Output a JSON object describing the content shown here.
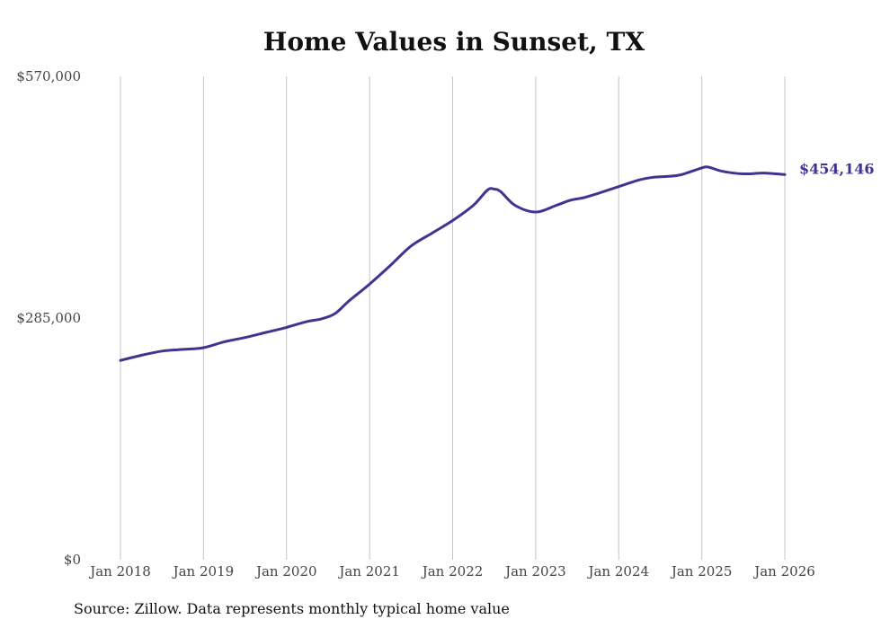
{
  "chart_data": {
    "type": "line",
    "title": "Home Values in Sunset, TX",
    "source": "Source: Zillow. Data represents monthly typical home value",
    "xlabel": "",
    "ylabel": "",
    "ylim": [
      0,
      570000
    ],
    "y_ticks": [
      {
        "value": 0,
        "label": "$0"
      },
      {
        "value": 285000,
        "label": "$285,000"
      },
      {
        "value": 570000,
        "label": "$570,000"
      }
    ],
    "x_ticks": [
      {
        "t": 2018,
        "label": "Jan 2018"
      },
      {
        "t": 2019,
        "label": "Jan 2019"
      },
      {
        "t": 2020,
        "label": "Jan 2020"
      },
      {
        "t": 2021,
        "label": "Jan 2021"
      },
      {
        "t": 2022,
        "label": "Jan 2022"
      },
      {
        "t": 2023,
        "label": "Jan 2023"
      },
      {
        "t": 2024,
        "label": "Jan 2024"
      },
      {
        "t": 2025,
        "label": "Jan 2025"
      },
      {
        "t": 2026,
        "label": "Jan 2026"
      }
    ],
    "xlim": [
      2018,
      2026
    ],
    "grid": "vertical",
    "line_color": "#3d3591",
    "end_label": "$454,146",
    "series": [
      {
        "name": "Typical home value",
        "points": [
          [
            2018.0,
            235000
          ],
          [
            2018.25,
            241000
          ],
          [
            2018.5,
            246000
          ],
          [
            2018.75,
            248000
          ],
          [
            2019.0,
            250000
          ],
          [
            2019.25,
            257000
          ],
          [
            2019.5,
            262000
          ],
          [
            2019.75,
            268000
          ],
          [
            2020.0,
            274000
          ],
          [
            2020.25,
            281000
          ],
          [
            2020.42,
            284000
          ],
          [
            2020.58,
            290000
          ],
          [
            2020.75,
            305000
          ],
          [
            2021.0,
            325000
          ],
          [
            2021.25,
            347000
          ],
          [
            2021.5,
            370000
          ],
          [
            2021.75,
            385000
          ],
          [
            2022.0,
            400000
          ],
          [
            2022.25,
            418000
          ],
          [
            2022.42,
            436000
          ],
          [
            2022.5,
            437000
          ],
          [
            2022.58,
            434000
          ],
          [
            2022.75,
            418000
          ],
          [
            2023.0,
            410000
          ],
          [
            2023.25,
            418000
          ],
          [
            2023.42,
            424000
          ],
          [
            2023.58,
            427000
          ],
          [
            2023.75,
            432000
          ],
          [
            2024.0,
            440000
          ],
          [
            2024.25,
            448000
          ],
          [
            2024.42,
            451000
          ],
          [
            2024.58,
            452000
          ],
          [
            2024.75,
            454000
          ],
          [
            2025.0,
            462000
          ],
          [
            2025.08,
            463000
          ],
          [
            2025.25,
            458000
          ],
          [
            2025.5,
            455000
          ],
          [
            2025.75,
            456000
          ],
          [
            2026.0,
            454146
          ]
        ]
      }
    ]
  }
}
